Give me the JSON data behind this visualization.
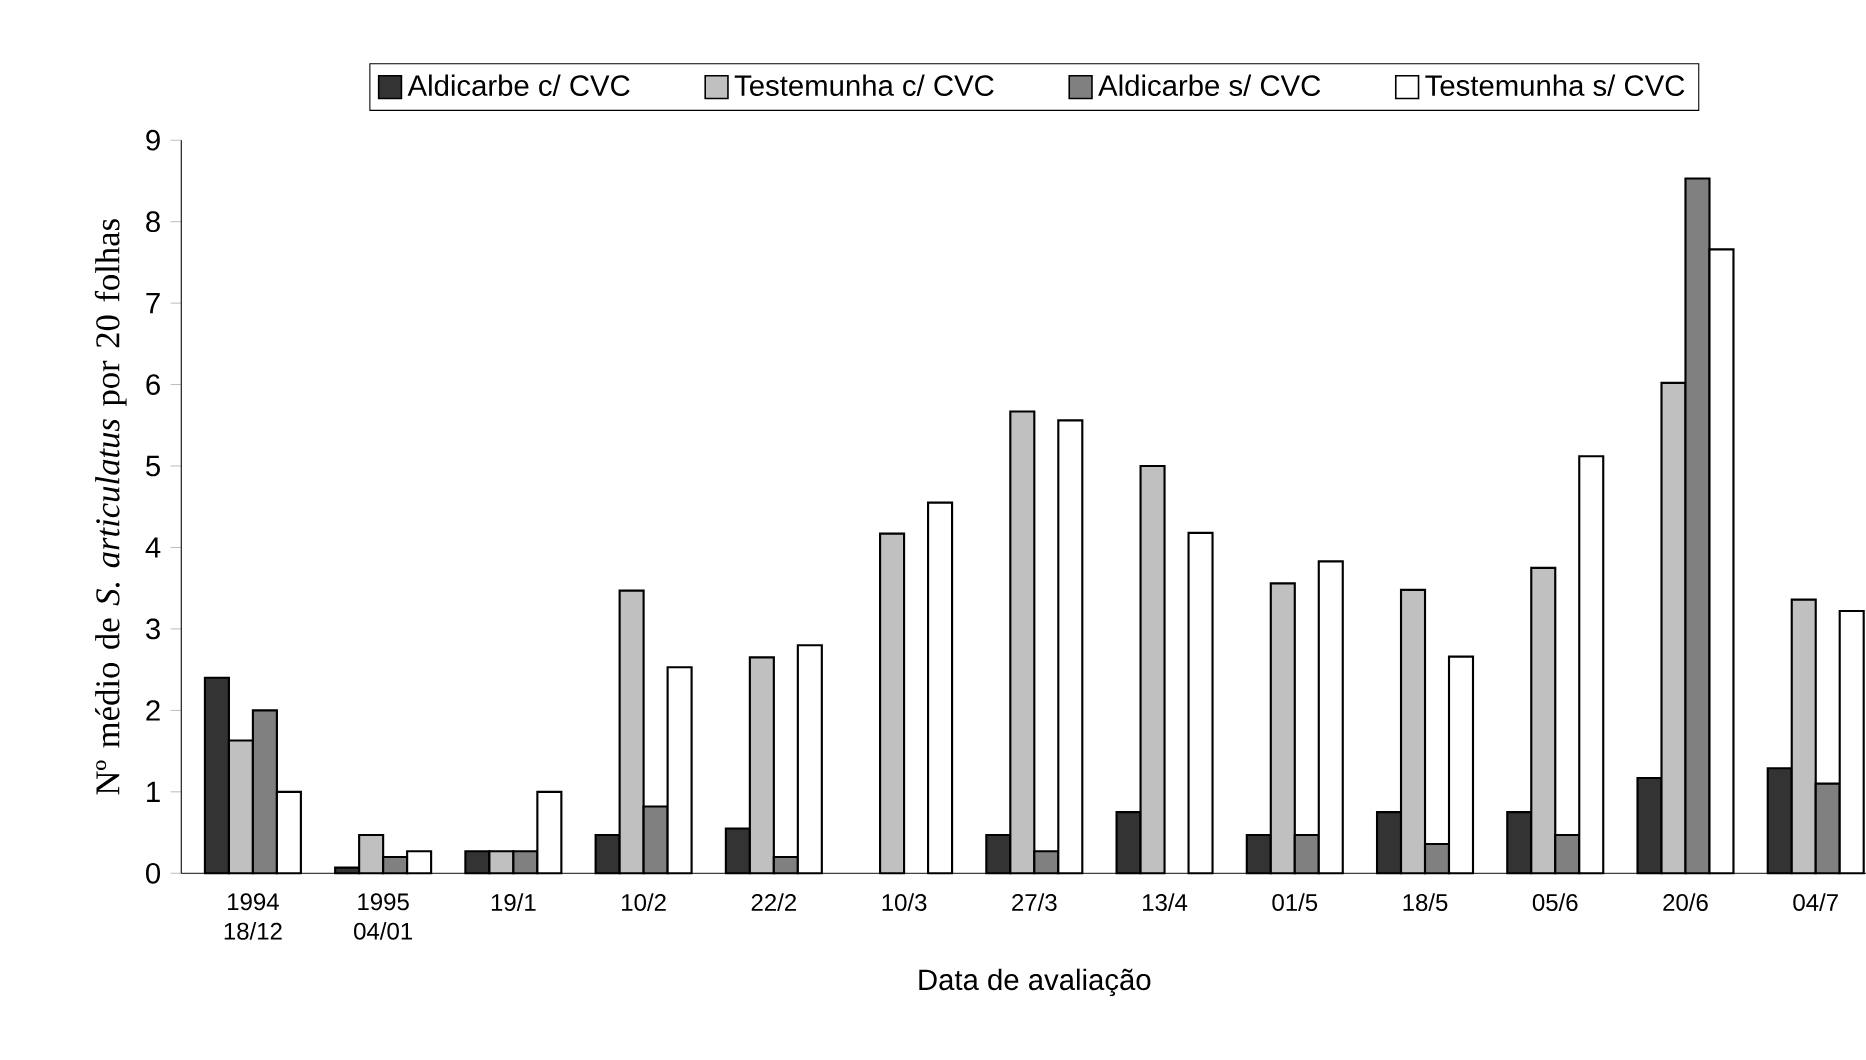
{
  "chart_data": {
    "type": "bar",
    "categories": [
      "1994 18/12",
      "1995 04/01",
      "19/1",
      "10/2",
      "22/2",
      "10/3",
      "27/3",
      "13/4",
      "01/5",
      "18/5",
      "05/6",
      "20/6",
      "04/7"
    ],
    "series": [
      {
        "name": "Aldicarbe c/ CVC",
        "color": "#333333",
        "values": [
          2.4,
          0.07,
          0.27,
          0.47,
          0.55,
          null,
          0.47,
          0.75,
          0.47,
          0.75,
          0.75,
          1.17,
          1.29
        ]
      },
      {
        "name": "Testemunha c/ CVC",
        "color": "#c0c0c0",
        "values": [
          1.63,
          0.47,
          0.27,
          3.47,
          2.65,
          4.17,
          5.67,
          5.0,
          3.56,
          3.48,
          3.75,
          6.02,
          3.36
        ]
      },
      {
        "name": "Aldicarbe s/ CVC",
        "color": "#808080",
        "values": [
          2.0,
          0.2,
          0.27,
          0.82,
          0.2,
          null,
          0.27,
          null,
          0.47,
          0.36,
          0.47,
          8.53,
          1.1
        ]
      },
      {
        "name": "Testemunha s/ CVC",
        "color": "#ffffff",
        "values": [
          1.0,
          0.27,
          1.0,
          2.53,
          2.8,
          4.55,
          5.56,
          4.18,
          3.83,
          2.66,
          5.12,
          7.66,
          3.22
        ]
      }
    ],
    "xlabel": "Data de avaliação",
    "ylabel": "Nº médio de *S. articulatus* por 20 folhas",
    "ylim": [
      0,
      9
    ],
    "yticks": [
      0,
      1,
      2,
      3,
      4,
      5,
      6,
      7,
      8,
      9
    ],
    "legend": "top",
    "grid": false
  }
}
